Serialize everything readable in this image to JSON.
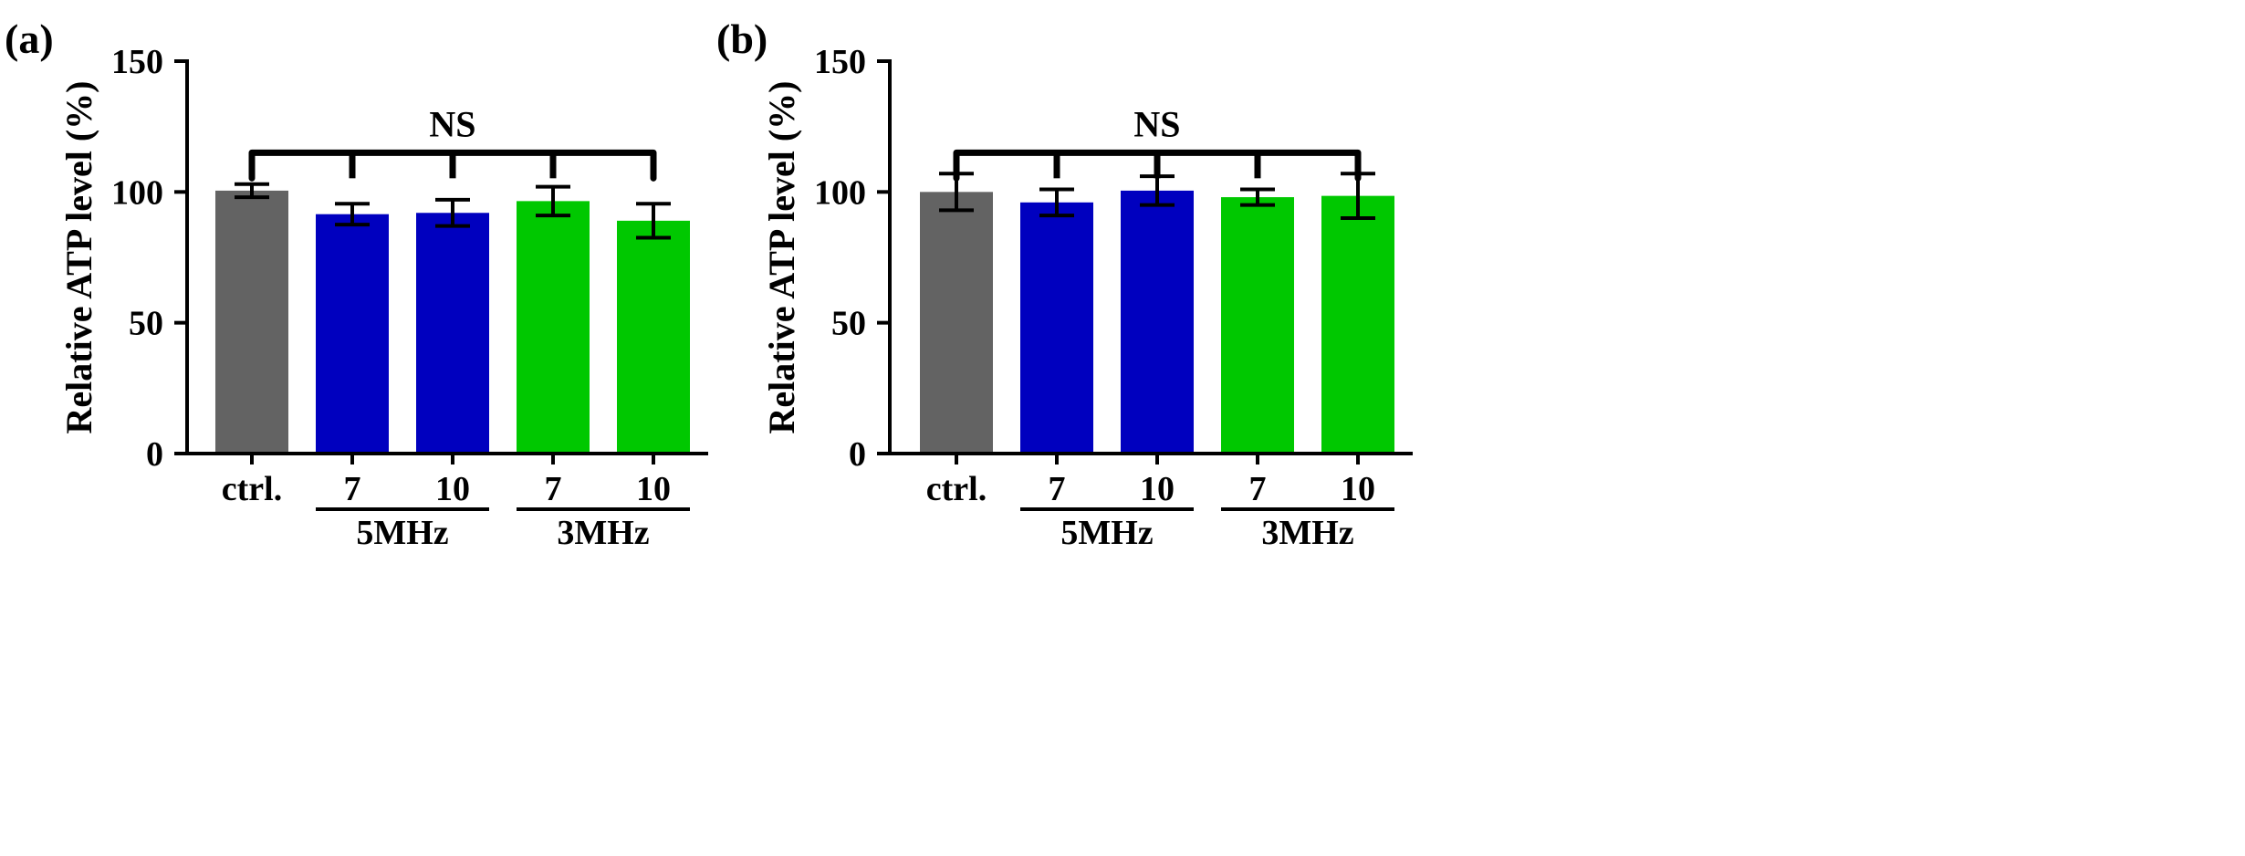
{
  "chart_data": [
    {
      "type": "bar",
      "panel_label": "(a)",
      "categories": [
        "ctrl.",
        "7",
        "10",
        "7",
        "10"
      ],
      "groups": [
        {
          "label": "5MHz",
          "categories": [
            1,
            2
          ]
        },
        {
          "label": "3MHz",
          "categories": [
            3,
            4
          ]
        }
      ],
      "values": [
        100.5,
        91.5,
        92,
        96.5,
        89
      ],
      "errors": [
        2.5,
        4,
        5,
        5.5,
        6.5
      ],
      "colors": [
        "#636363",
        "#0000bf",
        "#0000bf",
        "#00c800",
        "#00c800"
      ],
      "ylabel": "Relative ATP level (%)",
      "xlabel": "",
      "ylim": [
        0,
        150
      ],
      "yticks": [
        0,
        50,
        100,
        150
      ],
      "significance": {
        "label": "NS",
        "y": 115,
        "from": 0,
        "to": 4
      }
    },
    {
      "type": "bar",
      "panel_label": "(b)",
      "categories": [
        "ctrl.",
        "7",
        "10",
        "7",
        "10"
      ],
      "groups": [
        {
          "label": "5MHz",
          "categories": [
            1,
            2
          ]
        },
        {
          "label": "3MHz",
          "categories": [
            3,
            4
          ]
        }
      ],
      "values": [
        100,
        96,
        100.5,
        98,
        98.5
      ],
      "errors": [
        7,
        5,
        5.5,
        3,
        8.5
      ],
      "colors": [
        "#636363",
        "#0000bf",
        "#0000bf",
        "#00c800",
        "#00c800"
      ],
      "ylabel": "Relative ATP level (%)",
      "xlabel": "",
      "ylim": [
        0,
        150
      ],
      "yticks": [
        0,
        50,
        100,
        150
      ],
      "significance": {
        "label": "NS",
        "y": 115,
        "from": 0,
        "to": 4
      }
    }
  ]
}
